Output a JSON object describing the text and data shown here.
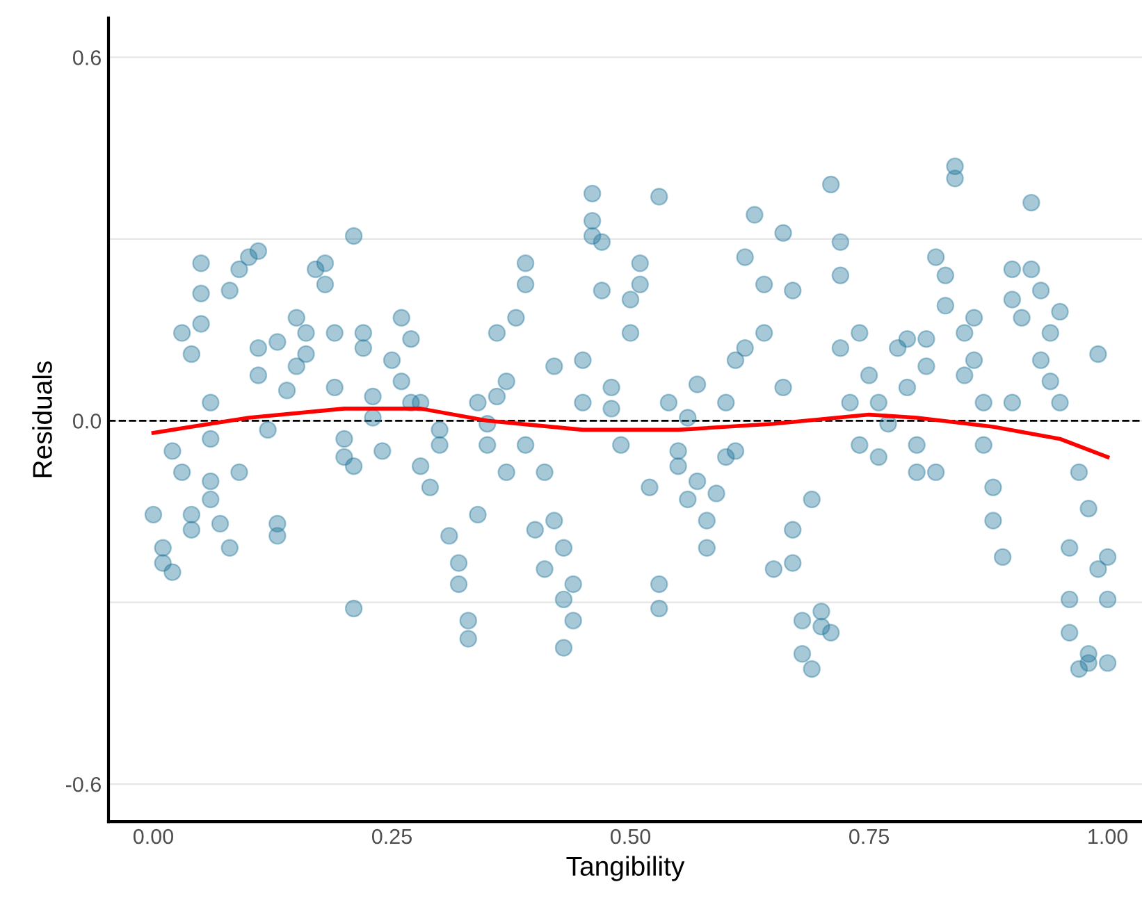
{
  "chart_data": {
    "type": "scatter",
    "xlabel": "Tangibility",
    "ylabel": "Residuals",
    "xlim": [
      -0.047,
      1.036
    ],
    "ylim": [
      -0.662,
      0.665
    ],
    "xticks": [
      {
        "value": 0,
        "label": "0.00"
      },
      {
        "value": 0.25,
        "label": "0.25"
      },
      {
        "value": 0.5,
        "label": "0.50"
      },
      {
        "value": 0.75,
        "label": "0.75"
      },
      {
        "value": 1,
        "label": "1.00"
      }
    ],
    "yticks": [
      {
        "value": -0.6,
        "label": "-0.6"
      },
      {
        "value": -0.3,
        "label": null
      },
      {
        "value": 0,
        "label": "0.0"
      },
      {
        "value": 0.3,
        "label": null
      },
      {
        "value": 0.6,
        "label": "0.6"
      }
    ],
    "grid": "y",
    "legend": false,
    "ref_lines": [
      {
        "axis": "y",
        "value": 0,
        "color": "#000000",
        "line_style": "dashed"
      }
    ],
    "series": [
      {
        "color": "#21759b",
        "marker": "circle",
        "x": [
          0.0,
          0.01,
          0.01,
          0.02,
          0.03,
          0.02,
          0.03,
          0.04,
          0.04,
          0.05,
          0.05,
          0.04,
          0.06,
          0.06,
          0.06,
          0.06,
          0.05,
          0.07,
          0.08,
          0.09,
          0.08,
          0.09,
          0.1,
          0.11,
          0.11,
          0.11,
          0.12,
          0.13,
          0.13,
          0.13,
          0.14,
          0.15,
          0.15,
          0.16,
          0.16,
          0.17,
          0.18,
          0.18,
          0.19,
          0.19,
          0.2,
          0.2,
          0.21,
          0.21,
          0.21,
          0.22,
          0.22,
          0.23,
          0.23,
          0.24,
          0.25,
          0.26,
          0.26,
          0.27,
          0.27,
          0.28,
          0.28,
          0.29,
          0.3,
          0.3,
          0.31,
          0.32,
          0.32,
          0.33,
          0.33,
          0.34,
          0.34,
          0.35,
          0.35,
          0.36,
          0.36,
          0.37,
          0.37,
          0.38,
          0.39,
          0.39,
          0.39,
          0.4,
          0.41,
          0.41,
          0.42,
          0.42,
          0.43,
          0.43,
          0.43,
          0.44,
          0.44,
          0.45,
          0.45,
          0.46,
          0.46,
          0.46,
          0.47,
          0.47,
          0.48,
          0.48,
          0.49,
          0.5,
          0.5,
          0.51,
          0.51,
          0.52,
          0.53,
          0.53,
          0.53,
          0.54,
          0.55,
          0.55,
          0.56,
          0.56,
          0.57,
          0.57,
          0.58,
          0.58,
          0.59,
          0.6,
          0.6,
          0.61,
          0.61,
          0.62,
          0.62,
          0.63,
          0.64,
          0.64,
          0.65,
          0.66,
          0.66,
          0.67,
          0.67,
          0.67,
          0.68,
          0.68,
          0.69,
          0.69,
          0.7,
          0.7,
          0.71,
          0.71,
          0.72,
          0.72,
          0.72,
          0.73,
          0.74,
          0.74,
          0.75,
          0.76,
          0.76,
          0.77,
          0.78,
          0.79,
          0.79,
          0.8,
          0.8,
          0.81,
          0.81,
          0.82,
          0.82,
          0.83,
          0.83,
          0.84,
          0.84,
          0.85,
          0.85,
          0.86,
          0.86,
          0.87,
          0.87,
          0.88,
          0.88,
          0.89,
          0.9,
          0.9,
          0.9,
          0.91,
          0.92,
          0.92,
          0.93,
          0.93,
          0.94,
          0.94,
          0.95,
          0.95,
          0.96,
          0.96,
          0.96,
          0.97,
          0.97,
          0.98,
          0.98,
          0.99,
          0.99,
          1.0,
          0.98,
          1.0,
          1.0
        ],
        "values": [
          -0.155,
          -0.21,
          -0.235,
          -0.25,
          -0.085,
          -0.05,
          0.145,
          -0.155,
          -0.18,
          0.26,
          0.21,
          0.11,
          -0.1,
          -0.03,
          0.03,
          -0.13,
          0.16,
          -0.17,
          -0.21,
          -0.085,
          0.215,
          0.25,
          0.27,
          0.28,
          0.075,
          0.12,
          -0.015,
          -0.17,
          -0.19,
          0.13,
          0.05,
          0.09,
          0.17,
          0.11,
          0.145,
          0.25,
          0.26,
          0.225,
          0.055,
          0.145,
          -0.03,
          -0.06,
          -0.075,
          0.305,
          -0.31,
          0.145,
          0.12,
          0.04,
          0.005,
          -0.05,
          0.1,
          0.065,
          0.17,
          0.135,
          0.03,
          -0.075,
          0.03,
          -0.11,
          -0.04,
          -0.015,
          -0.19,
          -0.235,
          -0.27,
          -0.33,
          -0.36,
          -0.155,
          0.03,
          -0.005,
          -0.04,
          0.04,
          0.145,
          0.065,
          -0.085,
          0.17,
          0.225,
          0.26,
          -0.04,
          -0.18,
          -0.245,
          -0.085,
          0.09,
          -0.165,
          -0.21,
          -0.295,
          -0.375,
          -0.27,
          -0.33,
          0.1,
          0.03,
          0.305,
          0.375,
          0.33,
          0.295,
          0.215,
          0.055,
          0.02,
          -0.04,
          0.145,
          0.2,
          0.225,
          0.26,
          -0.11,
          -0.27,
          -0.31,
          0.37,
          0.03,
          -0.05,
          -0.075,
          -0.13,
          0.005,
          0.06,
          -0.1,
          -0.165,
          -0.21,
          -0.12,
          -0.06,
          0.03,
          0.1,
          -0.05,
          0.12,
          0.27,
          0.34,
          0.145,
          0.225,
          -0.245,
          0.055,
          0.31,
          0.215,
          -0.18,
          -0.235,
          -0.33,
          -0.385,
          -0.41,
          -0.13,
          -0.34,
          -0.315,
          -0.35,
          0.39,
          0.295,
          0.24,
          0.12,
          0.03,
          -0.04,
          0.145,
          0.075,
          -0.06,
          0.03,
          -0.005,
          0.12,
          0.055,
          0.135,
          -0.085,
          -0.04,
          0.09,
          0.135,
          0.27,
          -0.085,
          0.19,
          0.24,
          0.42,
          0.4,
          0.075,
          0.145,
          0.17,
          0.1,
          0.03,
          -0.04,
          -0.11,
          -0.165,
          -0.225,
          0.03,
          0.2,
          0.25,
          0.17,
          0.36,
          0.25,
          0.215,
          0.1,
          0.145,
          0.065,
          0.18,
          0.03,
          -0.295,
          -0.35,
          -0.21,
          -0.41,
          -0.085,
          -0.145,
          -0.385,
          0.11,
          -0.245,
          -0.295,
          -0.4,
          -0.225,
          -0.4
        ]
      },
      {
        "type": "line",
        "color": "#ff0000",
        "marker": "none",
        "x": [
          0.0,
          0.1,
          0.2,
          0.28,
          0.35,
          0.45,
          0.55,
          0.65,
          0.75,
          0.8,
          0.88,
          0.95,
          1.0
        ],
        "values": [
          -0.02,
          0.005,
          0.02,
          0.02,
          0.0,
          -0.015,
          -0.015,
          -0.005,
          0.01,
          0.005,
          -0.01,
          -0.03,
          -0.06
        ]
      }
    ]
  }
}
